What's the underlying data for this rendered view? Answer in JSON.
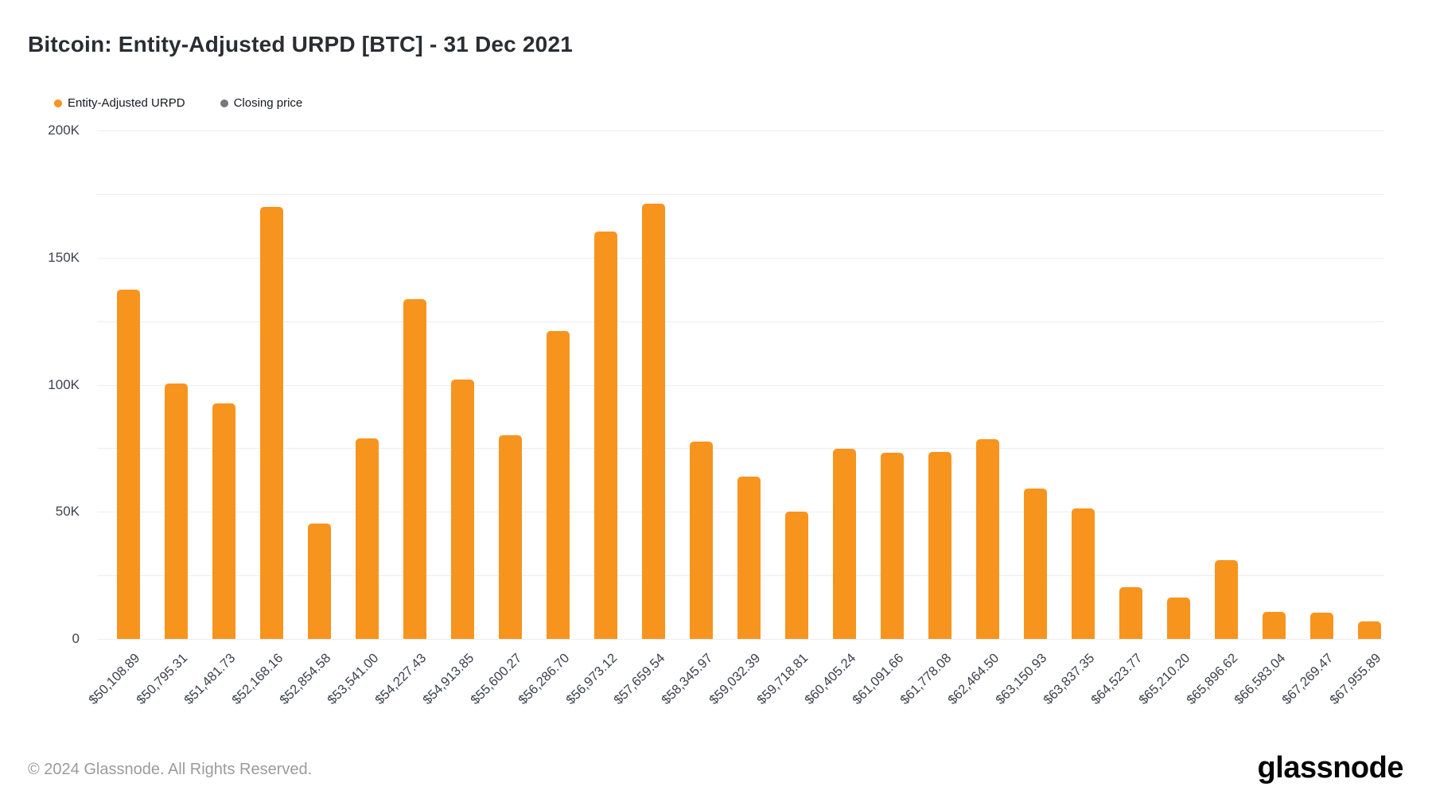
{
  "header": {
    "title": "Bitcoin: Entity-Adjusted URPD [BTC] - 31 Dec 2021"
  },
  "footer": {
    "copyright": "© 2024 Glassnode. All Rights Reserved.",
    "logo_text": "glassnode"
  },
  "chart_data": {
    "type": "bar",
    "title": "Bitcoin: Entity-Adjusted URPD [BTC] - 31 Dec 2021",
    "series_name": "Entity-Adjusted URPD",
    "unit": "BTC",
    "xlabel": "",
    "ylabel": "",
    "categories": [
      "$50,108.89",
      "$50,795.31",
      "$51,481.73",
      "$52,168.16",
      "$52,854.58",
      "$53,541.00",
      "$54,227.43",
      "$54,913.85",
      "$55,600.27",
      "$56,286.70",
      "$56,973.12",
      "$57,659.54",
      "$58,345.97",
      "$59,032.39",
      "$59,718.81",
      "$60,405.24",
      "$61,091.66",
      "$61,778.08",
      "$62,464.50",
      "$63,150.93",
      "$63,837.35",
      "$64,523.77",
      "$65,210.20",
      "$65,896.62",
      "$66,583.04",
      "$67,269.47",
      "$67,955.89"
    ],
    "values": [
      137400,
      100500,
      92600,
      170000,
      45400,
      78900,
      133700,
      102000,
      80000,
      121000,
      160200,
      171200,
      77700,
      63800,
      50000,
      74800,
      73300,
      73500,
      78700,
      59000,
      51200,
      20200,
      16300,
      31000,
      10600,
      10300,
      6900
    ],
    "ylim": [
      0,
      200000
    ],
    "yticks": [
      {
        "value": 0,
        "label": "0"
      },
      {
        "value": 50000,
        "label": "50K"
      },
      {
        "value": 100000,
        "label": "100K"
      },
      {
        "value": 150000,
        "label": "150K"
      },
      {
        "value": 200000,
        "label": "200K"
      }
    ],
    "grid_step": 25000,
    "grid_on": true,
    "legend_position": "top-left",
    "legend": [
      {
        "label": "Entity-Adjusted URPD",
        "color": "#F7941E"
      },
      {
        "label": "Closing price",
        "color": "#75787D"
      }
    ],
    "bar_color": "#F7941E",
    "grid_color": "#EDEDF0"
  }
}
